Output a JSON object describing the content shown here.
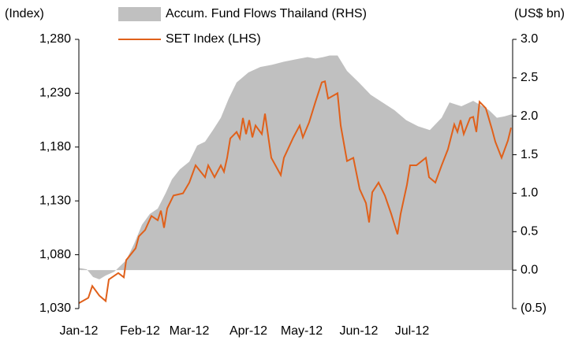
{
  "chart_data": {
    "type": "line",
    "ylabel": "(Index)",
    "y2label": "(US$ bn)",
    "xlim": [
      0,
      220
    ],
    "xticks": [
      {
        "value": 0,
        "label": "Jan-12"
      },
      {
        "value": 31,
        "label": "Feb-12"
      },
      {
        "value": 56,
        "label": "Mar-12"
      },
      {
        "value": 86,
        "label": "Apr-12"
      },
      {
        "value": 113,
        "label": "May-12"
      },
      {
        "value": 142,
        "label": "Jun-12"
      },
      {
        "value": 169,
        "label": "Jul-12"
      }
    ],
    "ylim": [
      1030,
      1280
    ],
    "yticks": [
      {
        "value": 1030,
        "label": "1,030"
      },
      {
        "value": 1080,
        "label": "1,080"
      },
      {
        "value": 1130,
        "label": "1,130"
      },
      {
        "value": 1180,
        "label": "1,180"
      },
      {
        "value": 1230,
        "label": "1,230"
      },
      {
        "value": 1280,
        "label": "1,280"
      }
    ],
    "y2lim": [
      -0.5,
      3.0
    ],
    "y2ticks": [
      {
        "value": -0.5,
        "label": "(0.5)"
      },
      {
        "value": 0,
        "label": "0.0"
      },
      0.5,
      {
        "value": 1.0,
        "label": "1.0"
      },
      1.5,
      {
        "value": 2.0,
        "label": "2.0"
      },
      2.5,
      {
        "value": 3.0,
        "label": "3.0"
      }
    ],
    "series": [
      {
        "name": "Accum. Fund Flows Thailand (RHS)",
        "color": "#c0c0c0",
        "kind": "area",
        "axis": "y2",
        "x": [
          0,
          4,
          7.2,
          10.4,
          13.6,
          18,
          24,
          28,
          32,
          36,
          40,
          44,
          47.2,
          51.2,
          56,
          60,
          64,
          68,
          72,
          76,
          80,
          86,
          92,
          98,
          104,
          110,
          116,
          120,
          124,
          127.2,
          131.2,
          136,
          142,
          148,
          154,
          160,
          166,
          172,
          178,
          184,
          188,
          194,
          200,
          208,
          212,
          216,
          220
        ],
        "values": [
          0.03,
          0.01,
          -0.09,
          -0.12,
          -0.07,
          -0.02,
          0.13,
          0.34,
          0.59,
          0.73,
          0.8,
          1.0,
          1.18,
          1.31,
          1.41,
          1.62,
          1.67,
          1.82,
          1.98,
          2.23,
          2.44,
          2.57,
          2.64,
          2.67,
          2.71,
          2.74,
          2.77,
          2.75,
          2.77,
          2.79,
          2.79,
          2.59,
          2.44,
          2.28,
          2.18,
          2.08,
          1.95,
          1.87,
          1.82,
          1.98,
          2.18,
          2.13,
          2.2,
          2.08,
          1.98,
          2.0,
          2.03
        ]
      },
      {
        "name": "SET Index (LHS)",
        "color": "#e0601a",
        "kind": "line",
        "x": [
          0,
          4.8,
          6.8,
          10.4,
          13.6,
          15.2,
          20,
          22.8,
          24,
          28.8,
          30.4,
          33.6,
          36.8,
          40,
          41.6,
          43.2,
          44.8,
          48,
          52.8,
          56,
          59.2,
          64,
          65.6,
          68.8,
          72,
          73.6,
          75.2,
          76.8,
          80,
          81.6,
          83.2,
          84.8,
          86.4,
          88,
          89.6,
          92.8,
          94.4,
          97.6,
          102.4,
          104,
          108.8,
          112,
          113.6,
          116.8,
          120,
          123.2,
          124.8,
          126.4,
          131.2,
          132.8,
          136,
          139.2,
          142.4,
          145.6,
          147.2,
          148.8,
          152,
          155.2,
          158.4,
          161.6,
          163.2,
          166.4,
          168,
          171.2,
          176,
          177.6,
          180.8,
          184,
          187.2,
          190.4,
          192,
          193.6,
          195.2,
          198.4,
          200,
          201.6,
          203.2,
          206.4,
          209.6,
          211.2,
          214.4,
          217.6,
          219.2
        ],
        "values": [
          1035,
          1040,
          1051,
          1042,
          1037,
          1057,
          1063,
          1059,
          1075,
          1086,
          1097,
          1103,
          1116,
          1112,
          1121,
          1105,
          1123,
          1135,
          1137,
          1147,
          1163,
          1152,
          1163,
          1152,
          1163,
          1157,
          1170,
          1188,
          1194,
          1188,
          1207,
          1192,
          1205,
          1189,
          1200,
          1192,
          1211,
          1170,
          1154,
          1170,
          1189,
          1200,
          1189,
          1203,
          1222,
          1240,
          1241,
          1225,
          1230,
          1200,
          1167,
          1170,
          1141,
          1128,
          1110,
          1138,
          1147,
          1135,
          1118,
          1099,
          1118,
          1145,
          1163,
          1163,
          1170,
          1152,
          1147,
          1163,
          1178,
          1201,
          1194,
          1205,
          1192,
          1207,
          1208,
          1194,
          1222,
          1216,
          1196,
          1185,
          1170,
          1186,
          1198
        ]
      }
    ]
  }
}
